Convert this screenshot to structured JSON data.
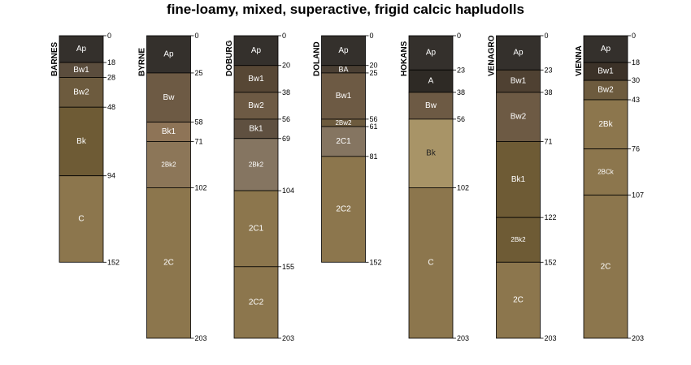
{
  "title": "fine-loamy, mixed, superactive, frigid calcic hapludolls",
  "chart_data": {
    "type": "soil-profile",
    "depth_units": "cm",
    "depth_range": [
      0,
      203
    ],
    "profiles": [
      {
        "name": "BARNES",
        "horizons": [
          {
            "name": "Ap",
            "top": 0,
            "bottom": 18,
            "color": "#34302c",
            "label_color": "#ffffff"
          },
          {
            "name": "Bw1",
            "top": 18,
            "bottom": 28,
            "color": "#5b4d3d",
            "label_color": "#ffffff"
          },
          {
            "name": "Bw2",
            "top": 28,
            "bottom": 48,
            "color": "#6d5b3e",
            "label_color": "#ffffff"
          },
          {
            "name": "Bk",
            "top": 48,
            "bottom": 94,
            "color": "#6e5b35",
            "label_color": "#ffffff"
          },
          {
            "name": "C",
            "top": 94,
            "bottom": 152,
            "color": "#8c764d",
            "label_color": "#ffffff"
          }
        ]
      },
      {
        "name": "BYRNE",
        "horizons": [
          {
            "name": "Ap",
            "top": 0,
            "bottom": 25,
            "color": "#34302c",
            "label_color": "#ffffff"
          },
          {
            "name": "Bw",
            "top": 25,
            "bottom": 58,
            "color": "#6d5a44",
            "label_color": "#ffffff"
          },
          {
            "name": "Bk1",
            "top": 58,
            "bottom": 71,
            "color": "#8e7457",
            "label_color": "#ffffff"
          },
          {
            "name": "2Bk2",
            "top": 71,
            "bottom": 102,
            "color": "#8c7658",
            "label_color": "#ffffff"
          },
          {
            "name": "2C",
            "top": 102,
            "bottom": 203,
            "color": "#8c764d",
            "label_color": "#ffffff"
          }
        ]
      },
      {
        "name": "DOBURG",
        "horizons": [
          {
            "name": "Ap",
            "top": 0,
            "bottom": 20,
            "color": "#34302c",
            "label_color": "#ffffff"
          },
          {
            "name": "Bw1",
            "top": 20,
            "bottom": 38,
            "color": "#574735",
            "label_color": "#ffffff"
          },
          {
            "name": "Bw2",
            "top": 38,
            "bottom": 56,
            "color": "#6d5a44",
            "label_color": "#ffffff"
          },
          {
            "name": "Bk1",
            "top": 56,
            "bottom": 69,
            "color": "#5f5040",
            "label_color": "#ffffff"
          },
          {
            "name": "2Bk2",
            "top": 69,
            "bottom": 104,
            "color": "#857561",
            "label_color": "#ffffff"
          },
          {
            "name": "2C1",
            "top": 104,
            "bottom": 155,
            "color": "#8c764d",
            "label_color": "#ffffff"
          },
          {
            "name": "2C2",
            "top": 155,
            "bottom": 203,
            "color": "#8c764d",
            "label_color": "#ffffff"
          }
        ]
      },
      {
        "name": "DOLAND",
        "horizons": [
          {
            "name": "Ap",
            "top": 0,
            "bottom": 20,
            "color": "#34302c",
            "label_color": "#ffffff"
          },
          {
            "name": "BA",
            "top": 20,
            "bottom": 25,
            "color": "#4a3f33",
            "label_color": "#ffffff"
          },
          {
            "name": "Bw1",
            "top": 25,
            "bottom": 56,
            "color": "#6d5a44",
            "label_color": "#ffffff"
          },
          {
            "name": "2Bw2",
            "top": 56,
            "bottom": 61,
            "color": "#6d5b3e",
            "label_color": "#ffffff"
          },
          {
            "name": "2C1",
            "top": 61,
            "bottom": 81,
            "color": "#857561",
            "label_color": "#ffffff"
          },
          {
            "name": "2C2",
            "top": 81,
            "bottom": 152,
            "color": "#8c764d",
            "label_color": "#ffffff"
          }
        ]
      },
      {
        "name": "HOKANS",
        "horizons": [
          {
            "name": "Ap",
            "top": 0,
            "bottom": 23,
            "color": "#34302c",
            "label_color": "#ffffff"
          },
          {
            "name": "A",
            "top": 23,
            "bottom": 38,
            "color": "#2e2a25",
            "label_color": "#ffffff"
          },
          {
            "name": "Bw",
            "top": 38,
            "bottom": 56,
            "color": "#6d5a44",
            "label_color": "#ffffff"
          },
          {
            "name": "Bk",
            "top": 56,
            "bottom": 102,
            "color": "#a89467",
            "label_color": "#222222"
          },
          {
            "name": "C",
            "top": 102,
            "bottom": 203,
            "color": "#8c764d",
            "label_color": "#ffffff"
          }
        ]
      },
      {
        "name": "VENAGRO",
        "horizons": [
          {
            "name": "Ap",
            "top": 0,
            "bottom": 23,
            "color": "#34302c",
            "label_color": "#ffffff"
          },
          {
            "name": "Bw1",
            "top": 23,
            "bottom": 38,
            "color": "#4f4132",
            "label_color": "#ffffff"
          },
          {
            "name": "Bw2",
            "top": 38,
            "bottom": 71,
            "color": "#6d5a44",
            "label_color": "#ffffff"
          },
          {
            "name": "Bk1",
            "top": 71,
            "bottom": 122,
            "color": "#6e5b35",
            "label_color": "#ffffff"
          },
          {
            "name": "2Bk2",
            "top": 122,
            "bottom": 152,
            "color": "#6e5b35",
            "label_color": "#ffffff"
          },
          {
            "name": "2C",
            "top": 152,
            "bottom": 203,
            "color": "#8c764d",
            "label_color": "#ffffff"
          }
        ]
      },
      {
        "name": "VIENNA",
        "horizons": [
          {
            "name": "Ap",
            "top": 0,
            "bottom": 18,
            "color": "#34302c",
            "label_color": "#ffffff"
          },
          {
            "name": "Bw1",
            "top": 18,
            "bottom": 30,
            "color": "#3c3228",
            "label_color": "#ffffff"
          },
          {
            "name": "Bw2",
            "top": 30,
            "bottom": 43,
            "color": "#6d5b3e",
            "label_color": "#ffffff"
          },
          {
            "name": "2Bk",
            "top": 43,
            "bottom": 76,
            "color": "#8c764d",
            "label_color": "#ffffff"
          },
          {
            "name": "2BCk",
            "top": 76,
            "bottom": 107,
            "color": "#8c764d",
            "label_color": "#ffffff"
          },
          {
            "name": "2C",
            "top": 107,
            "bottom": 203,
            "color": "#8c764d",
            "label_color": "#ffffff"
          }
        ]
      }
    ]
  }
}
